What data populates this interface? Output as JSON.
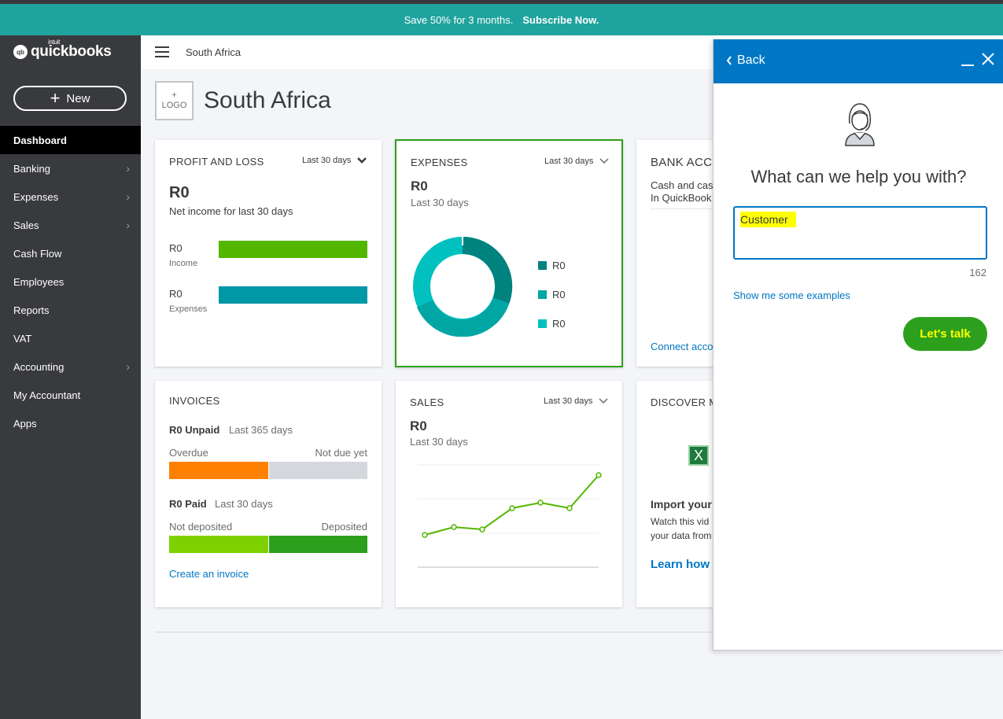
{
  "promo": {
    "text": "Save 50% for 3 months.",
    "link": "Subscribe Now."
  },
  "sidebar": {
    "logo_badge": "qb",
    "logo_small": "intuit",
    "logo_text": "quickbooks",
    "new_label": "New",
    "items": [
      {
        "label": "Dashboard",
        "active": true,
        "chevron": false
      },
      {
        "label": "Banking",
        "chevron": true
      },
      {
        "label": "Expenses",
        "chevron": true
      },
      {
        "label": "Sales",
        "chevron": true
      },
      {
        "label": "Cash Flow",
        "chevron": false
      },
      {
        "label": "Employees",
        "chevron": false
      },
      {
        "label": "Reports",
        "chevron": false
      },
      {
        "label": "VAT",
        "chevron": false
      },
      {
        "label": "Accounting",
        "chevron": true
      },
      {
        "label": "My Accountant",
        "chevron": false
      },
      {
        "label": "Apps",
        "chevron": false
      }
    ]
  },
  "header": {
    "company": "South Africa"
  },
  "company": {
    "logo_plus": "+",
    "logo_text": "LOGO",
    "title": "South Africa"
  },
  "profit_loss": {
    "title": "PROFIT AND LOSS",
    "period": "Last 30 days",
    "amount": "R0",
    "subtitle": "Net income for last 30 days",
    "income_value": "R0",
    "income_label": "Income",
    "expenses_value": "R0",
    "expenses_label": "Expenses",
    "income_color": "#53b700",
    "expenses_color": "#0097a7"
  },
  "expenses": {
    "title": "EXPENSES",
    "period": "Last 30 days",
    "amount": "R0",
    "subtitle": "Last 30 days",
    "legend": [
      {
        "value": "R0",
        "color": "#00827f"
      },
      {
        "value": "R0",
        "color": "#00a6a4"
      },
      {
        "value": "R0",
        "color": "#00c1bf"
      }
    ]
  },
  "bank": {
    "title": "BANK ACC",
    "line1": "Cash and cas",
    "line2": "In QuickBook",
    "link": "Connect acco"
  },
  "invoices": {
    "title": "INVOICES",
    "unpaid": "R0 Unpaid",
    "unpaid_period": "Last 365 days",
    "overdue": "Overdue",
    "not_due": "Not due yet",
    "paid": "R0 Paid",
    "paid_period": "Last 30 days",
    "not_deposited": "Not deposited",
    "deposited": "Deposited",
    "link": "Create an invoice"
  },
  "sales": {
    "title": "SALES",
    "period": "Last 30 days",
    "amount": "R0",
    "subtitle": "Last 30 days"
  },
  "discover": {
    "title": "DISCOVER M",
    "icon_letter": "X",
    "heading": "Import your",
    "line1": "Watch this vid",
    "line2": "your data from",
    "link": "Learn how"
  },
  "chat": {
    "back": "Back",
    "title": "What can we help you with?",
    "input_value": "Customer",
    "char_count": "162",
    "examples": "Show me some examples",
    "talk": "Let's talk"
  }
}
